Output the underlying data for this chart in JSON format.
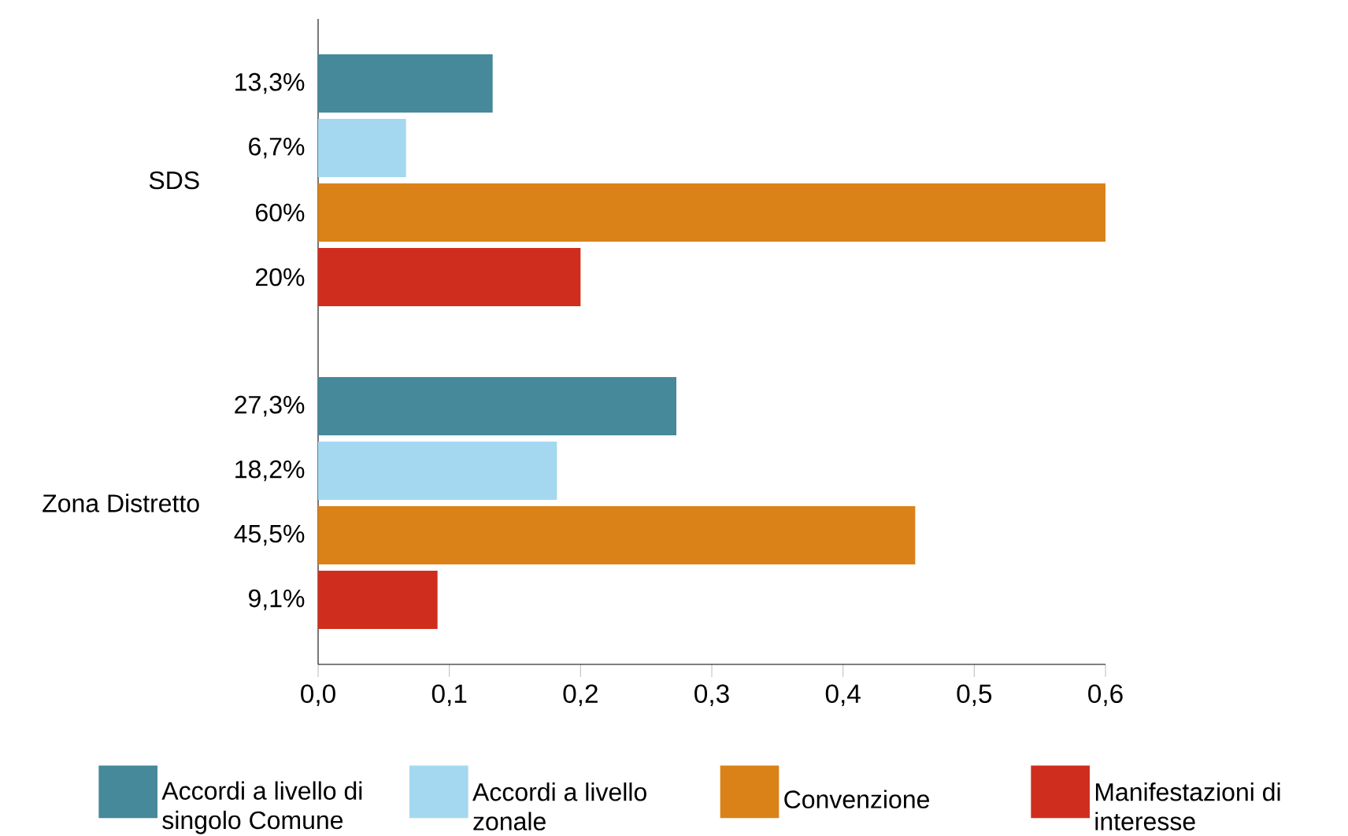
{
  "chart_data": {
    "type": "bar",
    "orientation": "horizontal",
    "categories": [
      "SDS",
      "Zona Distretto"
    ],
    "series": [
      {
        "name": "Accordi a livello di singolo Comune",
        "color": "#45899a",
        "values": [
          0.133,
          0.273
        ],
        "value_labels": [
          "13,3%",
          "27,3%"
        ]
      },
      {
        "name": "Accordi a livello zonale",
        "color": "#a4d8f0",
        "values": [
          0.067,
          0.182
        ],
        "value_labels": [
          "6,7%",
          "18,2%"
        ]
      },
      {
        "name": "Convenzione",
        "color": "#da8218",
        "values": [
          0.6,
          0.455
        ],
        "value_labels": [
          "60%",
          "45,5%"
        ]
      },
      {
        "name": "Manifestazioni di interesse",
        "color": "#cf2e1e",
        "values": [
          0.2,
          0.091
        ],
        "value_labels": [
          "20%",
          "9,1%"
        ]
      }
    ],
    "xlim": [
      0,
      0.6
    ],
    "xticks": [
      {
        "value": 0,
        "label": "0,0"
      },
      {
        "value": 0.1,
        "label": "0,1"
      },
      {
        "value": 0.2,
        "label": "0,2"
      },
      {
        "value": 0.3,
        "label": "0,3"
      },
      {
        "value": 0.4,
        "label": "0,4"
      },
      {
        "value": 0.5,
        "label": "0,5"
      },
      {
        "value": 0.6,
        "label": "0,6"
      }
    ],
    "grid": false,
    "legend": "bottom"
  }
}
